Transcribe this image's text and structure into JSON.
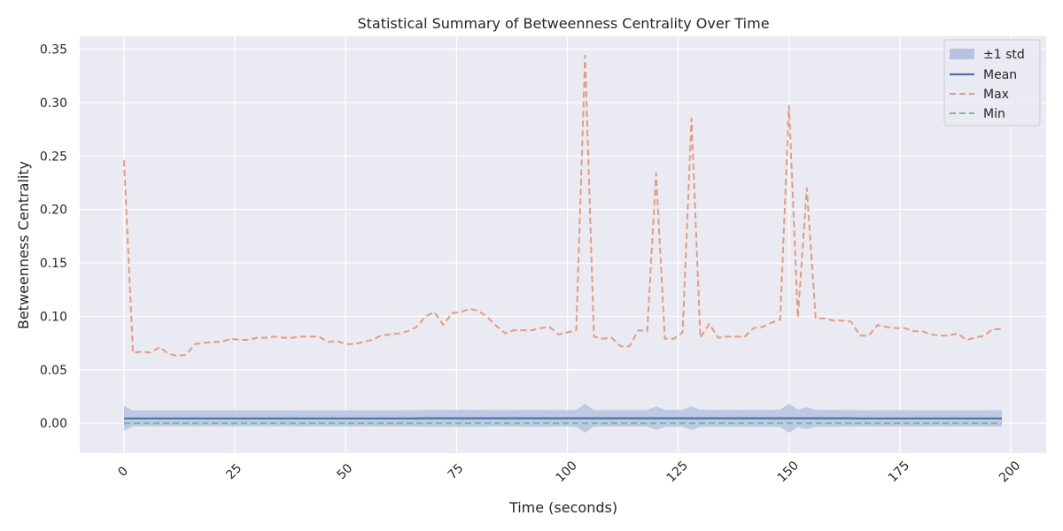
{
  "chart_data": {
    "type": "line",
    "title": "Statistical Summary of Betweenness Centrality Over Time",
    "xlabel": "Time (seconds)",
    "ylabel": "Betweenness Centrality",
    "xlim": [
      -10,
      208
    ],
    "ylim": [
      -0.028,
      0.362
    ],
    "xticks": [
      0,
      25,
      50,
      75,
      100,
      125,
      150,
      175,
      200
    ],
    "xtick_labels": [
      "0",
      "25",
      "50",
      "75",
      "100",
      "125",
      "150",
      "175",
      "200"
    ],
    "yticks": [
      0.0,
      0.05,
      0.1,
      0.15,
      0.2,
      0.25,
      0.3,
      0.35
    ],
    "ytick_labels": [
      "0.00",
      "0.05",
      "0.10",
      "0.15",
      "0.20",
      "0.25",
      "0.30",
      "0.35"
    ],
    "grid": true,
    "legend_position": "top-right",
    "legend": [
      "±1 std",
      "Mean",
      "Max",
      "Min"
    ],
    "colors": {
      "background": "#eaeaf2",
      "grid": "#ffffff",
      "band": "#b6c3e0",
      "mean": "#4c72b0",
      "max": "#e59c7e",
      "min": "#79bd95"
    },
    "x": [
      0,
      2,
      4,
      6,
      8,
      10,
      12,
      14,
      16,
      18,
      20,
      22,
      24,
      26,
      28,
      30,
      32,
      34,
      36,
      38,
      40,
      42,
      44,
      46,
      48,
      50,
      52,
      54,
      56,
      58,
      60,
      62,
      64,
      66,
      68,
      70,
      72,
      74,
      76,
      78,
      80,
      82,
      84,
      86,
      88,
      90,
      92,
      94,
      96,
      98,
      100,
      102,
      104,
      106,
      108,
      110,
      112,
      114,
      116,
      118,
      120,
      122,
      124,
      126,
      128,
      130,
      132,
      134,
      136,
      138,
      140,
      142,
      144,
      146,
      148,
      150,
      152,
      154,
      156,
      158,
      160,
      162,
      164,
      166,
      168,
      170,
      172,
      174,
      176,
      178,
      180,
      182,
      184,
      186,
      188,
      190,
      192,
      194,
      196,
      198
    ],
    "series": [
      {
        "name": "Max",
        "values": [
          0.246,
          0.066,
          0.067,
          0.066,
          0.071,
          0.065,
          0.063,
          0.064,
          0.074,
          0.075,
          0.076,
          0.076,
          0.079,
          0.078,
          0.078,
          0.08,
          0.08,
          0.081,
          0.08,
          0.08,
          0.081,
          0.081,
          0.081,
          0.076,
          0.077,
          0.074,
          0.074,
          0.076,
          0.078,
          0.082,
          0.083,
          0.084,
          0.086,
          0.09,
          0.1,
          0.104,
          0.092,
          0.103,
          0.104,
          0.107,
          0.105,
          0.099,
          0.091,
          0.084,
          0.087,
          0.087,
          0.087,
          0.089,
          0.09,
          0.083,
          0.085,
          0.087,
          0.344,
          0.081,
          0.079,
          0.08,
          0.072,
          0.072,
          0.087,
          0.086,
          0.234,
          0.079,
          0.079,
          0.085,
          0.285,
          0.08,
          0.093,
          0.08,
          0.081,
          0.081,
          0.081,
          0.089,
          0.09,
          0.094,
          0.097,
          0.297,
          0.099,
          0.22,
          0.098,
          0.098,
          0.096,
          0.096,
          0.095,
          0.082,
          0.082,
          0.092,
          0.09,
          0.089,
          0.089,
          0.086,
          0.086,
          0.083,
          0.082,
          0.082,
          0.084,
          0.078,
          0.08,
          0.082,
          0.088,
          0.088
        ]
      },
      {
        "name": "Mean",
        "values": [
          0.0045,
          0.0045,
          0.0045,
          0.0045,
          0.0045,
          0.0045,
          0.0045,
          0.0045,
          0.0045,
          0.0045,
          0.0045,
          0.0045,
          0.0045,
          0.0045,
          0.0045,
          0.0045,
          0.0045,
          0.0045,
          0.0045,
          0.0045,
          0.0045,
          0.0045,
          0.0045,
          0.0045,
          0.0045,
          0.0045,
          0.0045,
          0.0045,
          0.0045,
          0.0045,
          0.0045,
          0.0045,
          0.0045,
          0.0045,
          0.0046,
          0.0046,
          0.0046,
          0.0046,
          0.0046,
          0.0046,
          0.0046,
          0.0046,
          0.0046,
          0.0046,
          0.0046,
          0.0046,
          0.0046,
          0.0046,
          0.0046,
          0.0046,
          0.0046,
          0.0046,
          0.0046,
          0.0046,
          0.0046,
          0.0046,
          0.0046,
          0.0046,
          0.0046,
          0.0046,
          0.0046,
          0.0046,
          0.0046,
          0.0046,
          0.0046,
          0.0046,
          0.0046,
          0.0046,
          0.0046,
          0.0046,
          0.0046,
          0.0046,
          0.0046,
          0.0046,
          0.0046,
          0.0046,
          0.0046,
          0.0046,
          0.0046,
          0.0046,
          0.0046,
          0.0046,
          0.0046,
          0.0045,
          0.0045,
          0.0045,
          0.0045,
          0.0045,
          0.0045,
          0.0045,
          0.0045,
          0.0045,
          0.0045,
          0.0045,
          0.0045,
          0.0045,
          0.0045,
          0.0045,
          0.0045,
          0.0045
        ]
      },
      {
        "name": "Min",
        "values": [
          0,
          0,
          0,
          0,
          0,
          0,
          0,
          0,
          0,
          0,
          0,
          0,
          0,
          0,
          0,
          0,
          0,
          0,
          0,
          0,
          0,
          0,
          0,
          0,
          0,
          0,
          0,
          0,
          0,
          0,
          0,
          0,
          0,
          0,
          0,
          0,
          0,
          0,
          0,
          0,
          0,
          0,
          0,
          0,
          0,
          0,
          0,
          0,
          0,
          0,
          0,
          0,
          0,
          0,
          0,
          0,
          0,
          0,
          0,
          0,
          0,
          0,
          0,
          0,
          0,
          0,
          0,
          0,
          0,
          0,
          0,
          0,
          0,
          0,
          0,
          0,
          0,
          0,
          0,
          0,
          0,
          0,
          0,
          0,
          0,
          0,
          0,
          0,
          0,
          0,
          0,
          0,
          0,
          0,
          0,
          0,
          0,
          0,
          0,
          0
        ]
      },
      {
        "name": "±1 std",
        "values": [
          0.0115,
          0.0075,
          0.0075,
          0.0075,
          0.0075,
          0.0075,
          0.0075,
          0.0075,
          0.0075,
          0.0075,
          0.0075,
          0.0075,
          0.0075,
          0.0075,
          0.0075,
          0.0075,
          0.0075,
          0.0075,
          0.0075,
          0.0075,
          0.0076,
          0.0076,
          0.0076,
          0.0076,
          0.0076,
          0.0076,
          0.0076,
          0.0076,
          0.0076,
          0.0076,
          0.0076,
          0.0077,
          0.0077,
          0.0077,
          0.0079,
          0.0079,
          0.0079,
          0.0079,
          0.008,
          0.008,
          0.0079,
          0.0078,
          0.0077,
          0.0077,
          0.0078,
          0.0079,
          0.0079,
          0.0079,
          0.0078,
          0.0078,
          0.0078,
          0.0079,
          0.0135,
          0.0078,
          0.0078,
          0.0078,
          0.0078,
          0.0078,
          0.0078,
          0.0078,
          0.011,
          0.008,
          0.008,
          0.008,
          0.011,
          0.008,
          0.008,
          0.0079,
          0.0079,
          0.0079,
          0.008,
          0.008,
          0.008,
          0.008,
          0.0081,
          0.0135,
          0.0082,
          0.0103,
          0.008,
          0.008,
          0.0079,
          0.0078,
          0.0078,
          0.0076,
          0.0076,
          0.0077,
          0.0077,
          0.0077,
          0.0077,
          0.0077,
          0.0076,
          0.0076,
          0.0076,
          0.0076,
          0.0076,
          0.0076,
          0.0076,
          0.0076,
          0.0077,
          0.0077
        ]
      }
    ]
  }
}
